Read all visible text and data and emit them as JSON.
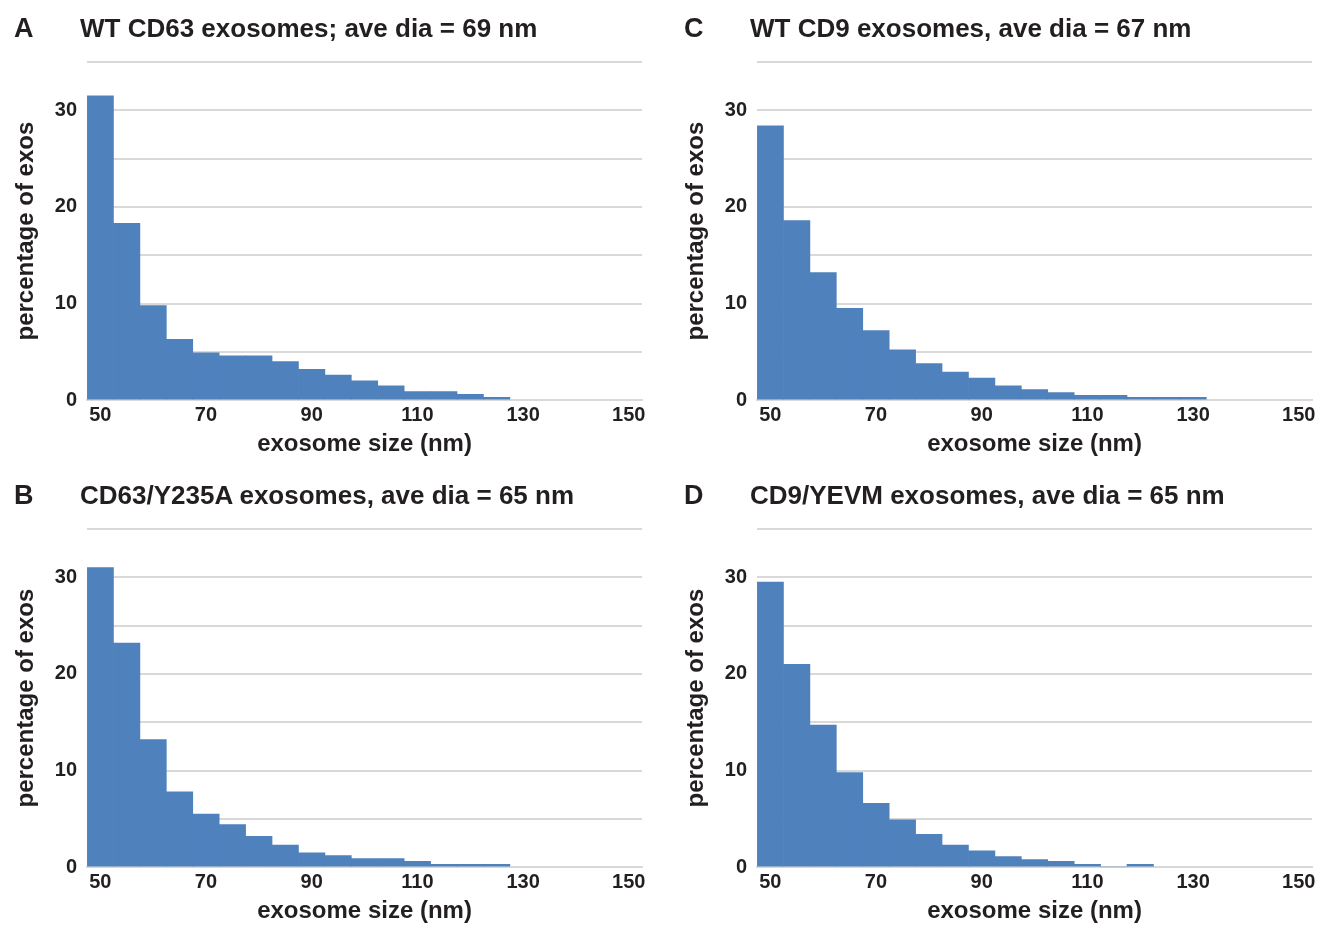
{
  "chart_data": [
    {
      "type": "histogram",
      "title": "WT CD63 exosomes; ave dia = 69 nm",
      "xlabel": "exosome size (nm)",
      "ylabel": "percentage of exos",
      "annotations": [
        "A"
      ],
      "color": "#4f81bd",
      "bins": [
        47.5,
        52.5,
        57.5,
        62.5,
        67.5,
        72.5,
        77.5,
        82.5,
        87.5,
        92.5,
        97.5,
        102.5,
        107.5,
        112.5,
        117.5,
        122.5,
        127.5
      ],
      "values": [
        31.5,
        18.3,
        9.8,
        6.3,
        4.9,
        4.6,
        4.6,
        4.0,
        3.2,
        2.6,
        2.0,
        1.5,
        0.9,
        0.9,
        0.6,
        0.3
      ],
      "xlim": [
        47.5,
        152.5
      ],
      "xticks": [
        50,
        70,
        90,
        110,
        130,
        150
      ],
      "ylim": [
        0,
        35
      ],
      "yticks": [
        0,
        {
          "value": 5,
          "label": null
        },
        10,
        {
          "value": 15,
          "label": null
        },
        20,
        {
          "value": 25,
          "label": null
        },
        30,
        {
          "value": 35,
          "label": null
        }
      ],
      "grid": "y"
    },
    {
      "type": "histogram",
      "title": "WT CD9 exosomes, ave dia = 67 nm",
      "xlabel": "exosome size (nm)",
      "ylabel": "percentage of exos",
      "annotations": [
        "C"
      ],
      "color": "#4f81bd",
      "bins": [
        47.5,
        52.5,
        57.5,
        62.5,
        67.5,
        72.5,
        77.5,
        82.5,
        87.5,
        92.5,
        97.5,
        102.5,
        107.5,
        112.5,
        117.5,
        122.5,
        127.5,
        132.5
      ],
      "values": [
        28.4,
        18.6,
        13.2,
        9.5,
        7.2,
        5.2,
        3.8,
        2.9,
        2.3,
        1.5,
        1.1,
        0.8,
        0.5,
        0.5,
        0.3,
        0.3,
        0.3
      ],
      "xlim": [
        47.5,
        152.5
      ],
      "xticks": [
        50,
        70,
        90,
        110,
        130,
        150
      ],
      "ylim": [
        0,
        35
      ],
      "yticks": [
        0,
        {
          "value": 5,
          "label": null
        },
        10,
        {
          "value": 15,
          "label": null
        },
        20,
        {
          "value": 25,
          "label": null
        },
        30,
        {
          "value": 35,
          "label": null
        }
      ],
      "grid": "y"
    },
    {
      "type": "histogram",
      "title": "CD63/Y235A exosomes, ave dia = 65 nm",
      "xlabel": "exosome size (nm)",
      "ylabel": "percentage of exos",
      "annotations": [
        "B"
      ],
      "color": "#4f81bd",
      "bins": [
        47.5,
        52.5,
        57.5,
        62.5,
        67.5,
        72.5,
        77.5,
        82.5,
        87.5,
        92.5,
        97.5,
        102.5,
        107.5,
        112.5,
        117.5,
        122.5,
        127.5
      ],
      "values": [
        31.0,
        23.2,
        13.2,
        7.8,
        5.5,
        4.4,
        3.2,
        2.3,
        1.5,
        1.2,
        0.9,
        0.9,
        0.6,
        0.3,
        0.3,
        0.3
      ],
      "xlim": [
        47.5,
        152.5
      ],
      "xticks": [
        50,
        70,
        90,
        110,
        130,
        150
      ],
      "ylim": [
        0,
        35
      ],
      "yticks": [
        0,
        {
          "value": 5,
          "label": null
        },
        10,
        {
          "value": 15,
          "label": null
        },
        20,
        {
          "value": 25,
          "label": null
        },
        30,
        {
          "value": 35,
          "label": null
        }
      ],
      "grid": "y"
    },
    {
      "type": "histogram",
      "title": "CD9/YEVM exosomes, ave dia = 65 nm",
      "xlabel": "exosome size (nm)",
      "ylabel": "percentage of exos",
      "annotations": [
        "D"
      ],
      "color": "#4f81bd",
      "bins": [
        47.5,
        52.5,
        57.5,
        62.5,
        67.5,
        72.5,
        77.5,
        82.5,
        87.5,
        92.5,
        97.5,
        102.5,
        107.5,
        112.5,
        117.5,
        122.5
      ],
      "values": [
        29.5,
        21.0,
        14.7,
        9.8,
        6.6,
        4.9,
        3.4,
        2.3,
        1.7,
        1.1,
        0.8,
        0.6,
        0.3,
        0,
        0.3
      ],
      "xlim": [
        47.5,
        152.5
      ],
      "xticks": [
        50,
        70,
        90,
        110,
        130,
        150
      ],
      "ylim": [
        0,
        35
      ],
      "yticks": [
        0,
        {
          "value": 5,
          "label": null
        },
        10,
        {
          "value": 15,
          "label": null
        },
        20,
        {
          "value": 25,
          "label": null
        },
        30,
        {
          "value": 35,
          "label": null
        }
      ],
      "grid": "y"
    }
  ]
}
